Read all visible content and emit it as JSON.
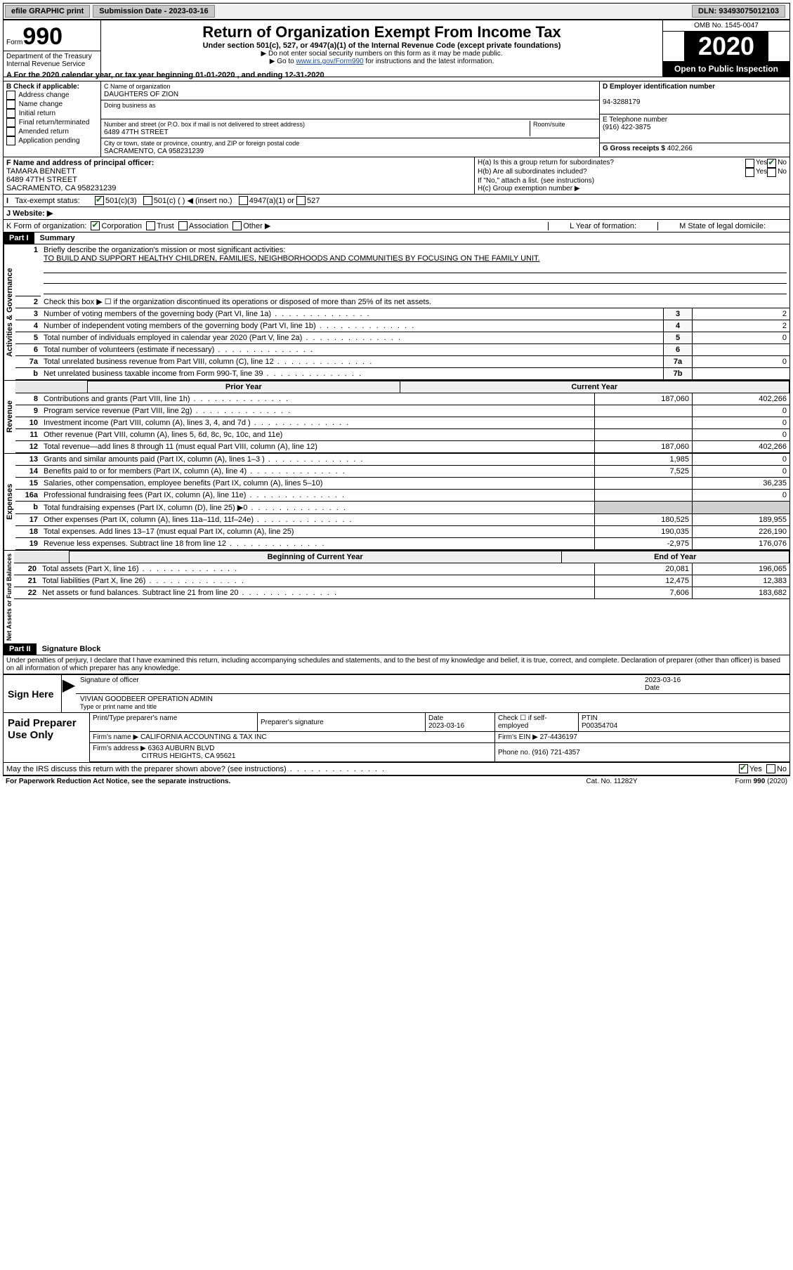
{
  "topbar": {
    "efile": "efile GRAPHIC print",
    "submission_label": "Submission Date - 2023-03-16",
    "dln_label": "DLN: 93493075012103"
  },
  "header": {
    "form_word": "Form",
    "form_number": "990",
    "dept": "Department of the Treasury",
    "irs": "Internal Revenue Service",
    "title": "Return of Organization Exempt From Income Tax",
    "subtitle": "Under section 501(c), 527, or 4947(a)(1) of the Internal Revenue Code (except private foundations)",
    "note1": "▶ Do not enter social security numbers on this form as it may be made public.",
    "note2_prefix": "▶ Go to ",
    "note2_link": "www.irs.gov/Form990",
    "note2_suffix": " for instructions and the latest information.",
    "omb": "OMB No. 1545-0047",
    "year": "2020",
    "open": "Open to Public Inspection"
  },
  "period": {
    "line_a": "A For the 2020 calendar year, or tax year beginning 01-01-2020   , and ending 12-31-2020"
  },
  "box_b": {
    "header": "B Check if applicable:",
    "items": [
      "Address change",
      "Name change",
      "Initial return",
      "Final return/terminated",
      "Amended return",
      "Application pending"
    ]
  },
  "box_c": {
    "name_label": "C Name of organization",
    "name": "DAUGHTERS OF ZION",
    "dba_label": "Doing business as",
    "street_label": "Number and street (or P.O. box if mail is not delivered to street address)",
    "room_label": "Room/suite",
    "street": "6489 47TH STREET",
    "city_label": "City or town, state or province, country, and ZIP or foreign postal code",
    "city": "SACRAMENTO, CA  958231239"
  },
  "box_d": {
    "label": "D Employer identification number",
    "value": "94-3288179"
  },
  "box_e": {
    "label": "E Telephone number",
    "value": "(916) 422-3875"
  },
  "box_g": {
    "label": "G Gross receipts $ ",
    "value": "402,266"
  },
  "box_f": {
    "label": "F  Name and address of principal officer:",
    "name": "TAMARA BENNETT",
    "street": "6489 47TH STREET",
    "city": "SACRAMENTO, CA  958231239"
  },
  "box_h": {
    "ha": "H(a)  Is this a group return for subordinates?",
    "hb": "H(b)  Are all subordinates included?",
    "hnote": "If \"No,\" attach a list. (see instructions)",
    "hc": "H(c)  Group exemption number ▶"
  },
  "tax_status": {
    "label": "Tax-exempt status:",
    "opt1": "501(c)(3)",
    "opt2": "501(c) (   ) ◀ (insert no.)",
    "opt3": "4947(a)(1) or",
    "opt4": "527"
  },
  "website": {
    "label": "J    Website: ▶"
  },
  "box_k": {
    "label": "K Form of organization:",
    "opts": [
      "Corporation",
      "Trust",
      "Association",
      "Other ▶"
    ]
  },
  "box_l": {
    "label": "L Year of formation:"
  },
  "box_m": {
    "label": "M State of legal domicile:"
  },
  "part1": {
    "header": "Part I",
    "title": "Summary",
    "q1": "Briefly describe the organization's mission or most significant activities:",
    "mission": "TO BUILD AND SUPPORT HEALTHY CHILDREN, FAMILIES, NEIGHBORHOODS AND COMMUNITIES BY FOCUSING ON THE FAMILY UNIT.",
    "q2": "Check this box ▶ ☐  if the organization discontinued its operations or disposed of more than 25% of its net assets.",
    "side_label_gov": "Activities & Governance",
    "side_label_rev": "Revenue",
    "side_label_exp": "Expenses",
    "side_label_net": "Net Assets or Fund Balances",
    "rows_gov": [
      {
        "n": "3",
        "t": "Number of voting members of the governing body (Part VI, line 1a)",
        "ln": "3",
        "v": "2"
      },
      {
        "n": "4",
        "t": "Number of independent voting members of the governing body (Part VI, line 1b)",
        "ln": "4",
        "v": "2"
      },
      {
        "n": "5",
        "t": "Total number of individuals employed in calendar year 2020 (Part V, line 2a)",
        "ln": "5",
        "v": "0"
      },
      {
        "n": "6",
        "t": "Total number of volunteers (estimate if necessary)",
        "ln": "6",
        "v": ""
      },
      {
        "n": "7a",
        "t": "Total unrelated business revenue from Part VIII, column (C), line 12",
        "ln": "7a",
        "v": "0"
      },
      {
        "n": "b",
        "t": "Net unrelated business taxable income from Form 990-T, line 39",
        "ln": "7b",
        "v": ""
      }
    ],
    "col_prior": "Prior Year",
    "col_current": "Current Year",
    "rows_rev": [
      {
        "n": "8",
        "t": "Contributions and grants (Part VIII, line 1h)",
        "p": "187,060",
        "c": "402,266"
      },
      {
        "n": "9",
        "t": "Program service revenue (Part VIII, line 2g)",
        "p": "",
        "c": "0"
      },
      {
        "n": "10",
        "t": "Investment income (Part VIII, column (A), lines 3, 4, and 7d )",
        "p": "",
        "c": "0"
      },
      {
        "n": "11",
        "t": "Other revenue (Part VIII, column (A), lines 5, 6d, 8c, 9c, 10c, and 11e)",
        "p": "",
        "c": "0"
      },
      {
        "n": "12",
        "t": "Total revenue—add lines 8 through 11 (must equal Part VIII, column (A), line 12)",
        "p": "187,060",
        "c": "402,266"
      }
    ],
    "rows_exp": [
      {
        "n": "13",
        "t": "Grants and similar amounts paid (Part IX, column (A), lines 1–3 )",
        "p": "1,985",
        "c": "0"
      },
      {
        "n": "14",
        "t": "Benefits paid to or for members (Part IX, column (A), line 4)",
        "p": "7,525",
        "c": "0"
      },
      {
        "n": "15",
        "t": "Salaries, other compensation, employee benefits (Part IX, column (A), lines 5–10)",
        "p": "",
        "c": "36,235"
      },
      {
        "n": "16a",
        "t": "Professional fundraising fees (Part IX, column (A), line 11e)",
        "p": "",
        "c": "0"
      },
      {
        "n": "b",
        "t": "Total fundraising expenses (Part IX, column (D), line 25) ▶0",
        "p": "—",
        "c": "—"
      },
      {
        "n": "17",
        "t": "Other expenses (Part IX, column (A), lines 11a–11d, 11f–24e)",
        "p": "180,525",
        "c": "189,955"
      },
      {
        "n": "18",
        "t": "Total expenses. Add lines 13–17 (must equal Part IX, column (A), line 25)",
        "p": "190,035",
        "c": "226,190"
      },
      {
        "n": "19",
        "t": "Revenue less expenses. Subtract line 18 from line 12",
        "p": "-2,975",
        "c": "176,076"
      }
    ],
    "col_begin": "Beginning of Current Year",
    "col_end": "End of Year",
    "rows_net": [
      {
        "n": "20",
        "t": "Total assets (Part X, line 16)",
        "p": "20,081",
        "c": "196,065"
      },
      {
        "n": "21",
        "t": "Total liabilities (Part X, line 26)",
        "p": "12,475",
        "c": "12,383"
      },
      {
        "n": "22",
        "t": "Net assets or fund balances. Subtract line 21 from line 20",
        "p": "7,606",
        "c": "183,682"
      }
    ]
  },
  "part2": {
    "header": "Part II",
    "title": "Signature Block",
    "perjury": "Under penalties of perjury, I declare that I have examined this return, including accompanying schedules and statements, and to the best of my knowledge and belief, it is true, correct, and complete. Declaration of preparer (other than officer) is based on all information of which preparer has any knowledge."
  },
  "sign": {
    "label": "Sign Here",
    "sig_officer": "Signature of officer",
    "date": "2023-03-16",
    "date_label": "Date",
    "typed_name": "VIVIAN GOODBEER  OPERATION ADMIN",
    "typed_label": "Type or print name and title"
  },
  "paid": {
    "label": "Paid Preparer Use Only",
    "h_print": "Print/Type preparer's name",
    "h_sig": "Preparer's signature",
    "h_date": "Date",
    "date": "2023-03-16",
    "h_check": "Check ☐ if self-employed",
    "h_ptin": "PTIN",
    "ptin": "P00354704",
    "firm_name_label": "Firm's name      ▶",
    "firm_name": "CALIFORNIA ACCOUNTING & TAX INC",
    "firm_ein_label": "Firm's EIN ▶",
    "firm_ein": "27-4436197",
    "firm_addr_label": "Firm's address ▶",
    "firm_addr1": "6363 AUBURN BLVD",
    "firm_addr2": "CITRUS HEIGHTS, CA  95621",
    "phone_label": "Phone no.",
    "phone": "(916) 721-4357",
    "discuss": "May the IRS discuss this return with the preparer shown above? (see instructions)"
  },
  "footer": {
    "left": "For Paperwork Reduction Act Notice, see the separate instructions.",
    "mid": "Cat. No. 11282Y",
    "right": "Form 990 (2020)"
  },
  "yesno": {
    "yes": "Yes",
    "no": "No"
  }
}
